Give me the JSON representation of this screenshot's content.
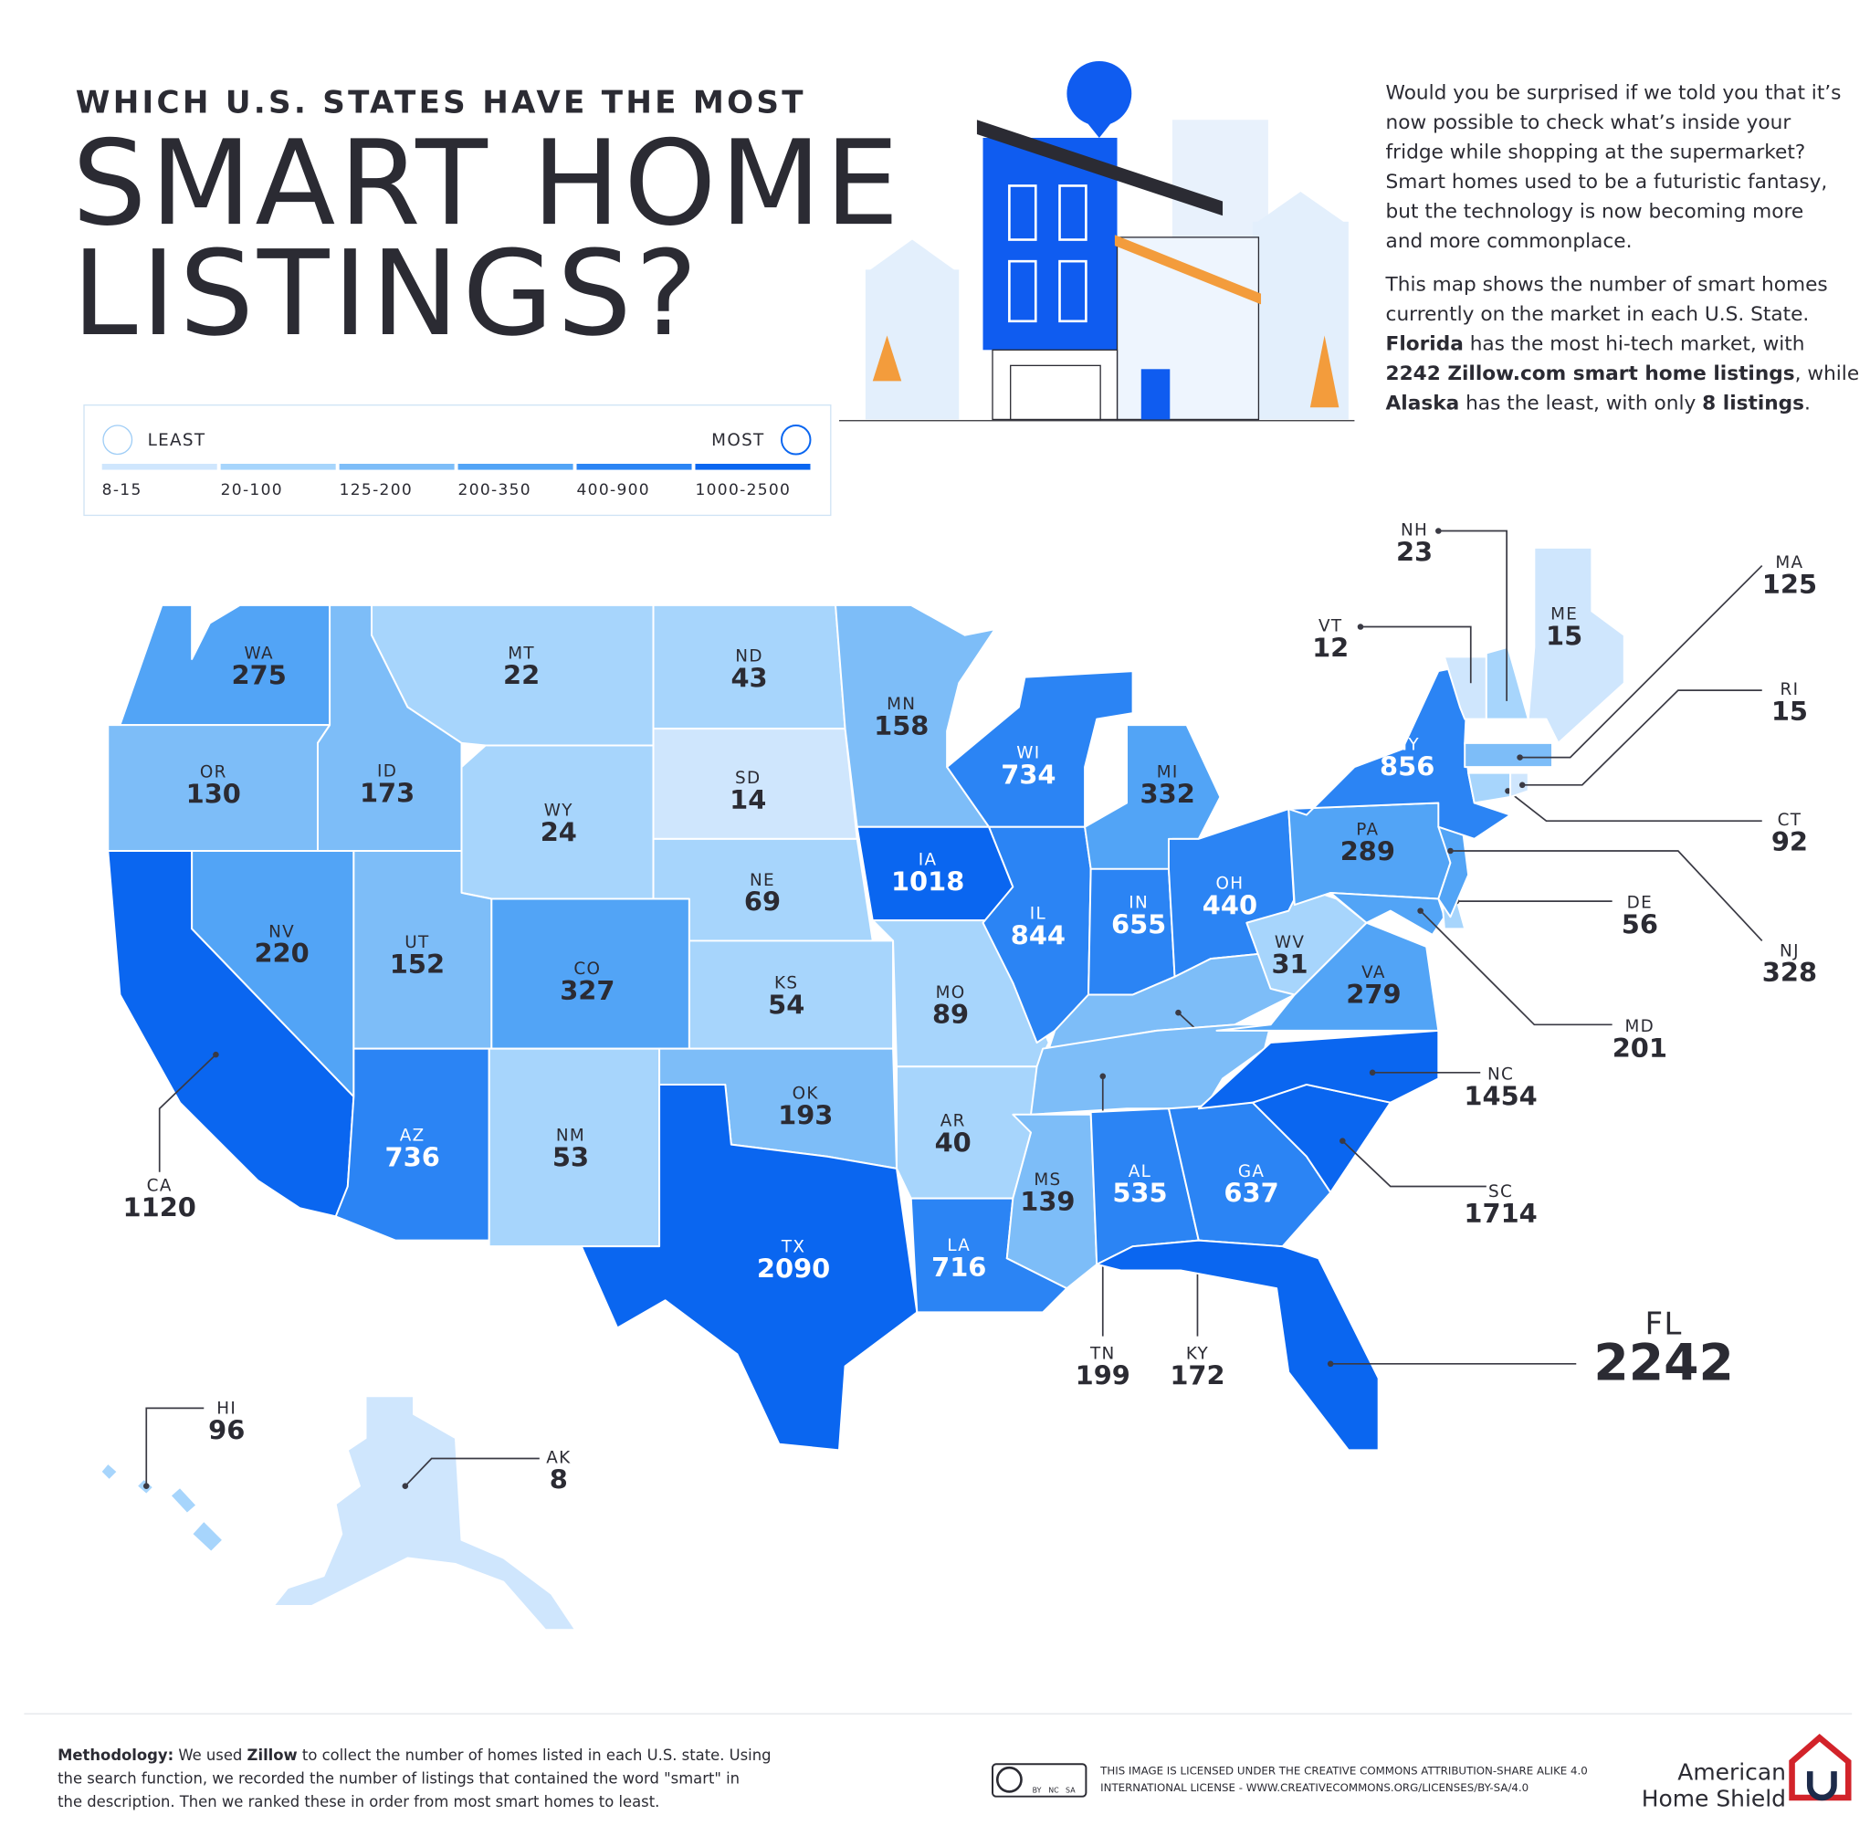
{
  "header": {
    "kicker": "WHICH U.S. STATES HAVE THE MOST",
    "title_line1": "SMART HOME",
    "title_line2": "LISTINGS?"
  },
  "intro": {
    "paragraph1": [
      [
        {
          "text": "Would you be surprised if we told you that it’s"
        }
      ],
      [
        {
          "text": "now possible to check what’s inside your"
        }
      ],
      [
        {
          "text": "fridge while shopping at the supermarket?"
        }
      ],
      [
        {
          "text": "Smart homes used to be a futuristic fantasy,"
        }
      ],
      [
        {
          "text": "but the technology is now becoming more"
        }
      ],
      [
        {
          "text": "and more commonplace."
        }
      ]
    ],
    "paragraph2": [
      [
        {
          "text": "This map shows the number of smart homes"
        }
      ],
      [
        {
          "text": "currently on the market in each U.S. State."
        }
      ],
      [
        {
          "text": "Florida",
          "bold": true
        },
        {
          "text": " has the most hi-tech market, with"
        }
      ],
      [
        {
          "text": "2242 Zillow.com smart home listings",
          "bold": true
        },
        {
          "text": ", while"
        }
      ],
      [
        {
          "text": "Alaska",
          "bold": true
        },
        {
          "text": " has the least, with only "
        },
        {
          "text": "8 listings",
          "bold": true
        },
        {
          "text": "."
        }
      ]
    ]
  },
  "legend": {
    "least": "LEAST",
    "most": "MOST",
    "bins": [
      {
        "label": "8-15",
        "color": "#cfe6fd"
      },
      {
        "label": "20-100",
        "color": "#a7d5fc"
      },
      {
        "label": "125-200",
        "color": "#7dbdf8"
      },
      {
        "label": "200-350",
        "color": "#52a4f6"
      },
      {
        "label": "400-900",
        "color": "#2b84f4"
      },
      {
        "label": "1000-2500",
        "color": "#0a66f0"
      }
    ]
  },
  "map": {
    "states": [
      {
        "abbr": "WA",
        "value": 275,
        "color": "#52a4f6"
      },
      {
        "abbr": "OR",
        "value": 130,
        "color": "#7dbdf8"
      },
      {
        "abbr": "CA",
        "value": 1120,
        "color": "#0a66f0"
      },
      {
        "abbr": "NV",
        "value": 220,
        "color": "#52a4f6"
      },
      {
        "abbr": "ID",
        "value": 173,
        "color": "#7dbdf8"
      },
      {
        "abbr": "MT",
        "value": 22,
        "color": "#a7d5fc"
      },
      {
        "abbr": "WY",
        "value": 24,
        "color": "#a7d5fc"
      },
      {
        "abbr": "UT",
        "value": 152,
        "color": "#7dbdf8"
      },
      {
        "abbr": "CO",
        "value": 327,
        "color": "#52a4f6"
      },
      {
        "abbr": "AZ",
        "value": 736,
        "color": "#2b84f4"
      },
      {
        "abbr": "NM",
        "value": 53,
        "color": "#a7d5fc"
      },
      {
        "abbr": "ND",
        "value": 43,
        "color": "#a7d5fc"
      },
      {
        "abbr": "SD",
        "value": 14,
        "color": "#cfe6fd"
      },
      {
        "abbr": "NE",
        "value": 69,
        "color": "#a7d5fc"
      },
      {
        "abbr": "KS",
        "value": 54,
        "color": "#a7d5fc"
      },
      {
        "abbr": "OK",
        "value": 193,
        "color": "#7dbdf8"
      },
      {
        "abbr": "TX",
        "value": 2090,
        "color": "#0a66f0"
      },
      {
        "abbr": "MN",
        "value": 158,
        "color": "#7dbdf8"
      },
      {
        "abbr": "IA",
        "value": 1018,
        "color": "#0a66f0"
      },
      {
        "abbr": "MO",
        "value": 89,
        "color": "#a7d5fc"
      },
      {
        "abbr": "AR",
        "value": 40,
        "color": "#a7d5fc"
      },
      {
        "abbr": "LA",
        "value": 716,
        "color": "#2b84f4"
      },
      {
        "abbr": "WI",
        "value": 734,
        "color": "#2b84f4"
      },
      {
        "abbr": "IL",
        "value": 844,
        "color": "#2b84f4"
      },
      {
        "abbr": "IN",
        "value": 655,
        "color": "#2b84f4"
      },
      {
        "abbr": "MI",
        "value": 332,
        "color": "#52a4f6"
      },
      {
        "abbr": "OH",
        "value": 440,
        "color": "#2b84f4"
      },
      {
        "abbr": "KY",
        "value": 172,
        "color": "#7dbdf8"
      },
      {
        "abbr": "TN",
        "value": 199,
        "color": "#7dbdf8"
      },
      {
        "abbr": "MS",
        "value": 139,
        "color": "#7dbdf8"
      },
      {
        "abbr": "AL",
        "value": 535,
        "color": "#2b84f4"
      },
      {
        "abbr": "GA",
        "value": 637,
        "color": "#2b84f4"
      },
      {
        "abbr": "FL",
        "value": 2242,
        "color": "#0a66f0"
      },
      {
        "abbr": "SC",
        "value": 1714,
        "color": "#0a66f0"
      },
      {
        "abbr": "NC",
        "value": 1454,
        "color": "#0a66f0"
      },
      {
        "abbr": "VA",
        "value": 279,
        "color": "#52a4f6"
      },
      {
        "abbr": "WV",
        "value": 31,
        "color": "#a7d5fc"
      },
      {
        "abbr": "PA",
        "value": 289,
        "color": "#52a4f6"
      },
      {
        "abbr": "MD",
        "value": 201,
        "color": "#52a4f6"
      },
      {
        "abbr": "DE",
        "value": 56,
        "color": "#a7d5fc"
      },
      {
        "abbr": "NJ",
        "value": 328,
        "color": "#52a4f6"
      },
      {
        "abbr": "NY",
        "value": 856,
        "color": "#2b84f4"
      },
      {
        "abbr": "CT",
        "value": 92,
        "color": "#a7d5fc"
      },
      {
        "abbr": "RI",
        "value": 15,
        "color": "#cfe6fd"
      },
      {
        "abbr": "MA",
        "value": 125,
        "color": "#7dbdf8"
      },
      {
        "abbr": "VT",
        "value": 12,
        "color": "#cfe6fd"
      },
      {
        "abbr": "NH",
        "value": 23,
        "color": "#a7d5fc"
      },
      {
        "abbr": "ME",
        "value": 15,
        "color": "#cfe6fd"
      },
      {
        "abbr": "HI",
        "value": 96,
        "color": "#a7d5fc"
      },
      {
        "abbr": "AK",
        "value": 8,
        "color": "#cfe6fd"
      }
    ]
  },
  "methodology": [
    [
      {
        "text": "Methodology:",
        "bold": true
      },
      {
        "text": " We used "
      },
      {
        "text": "Zillow",
        "bold": true
      },
      {
        "text": " to collect the number of homes listed in each U.S. state. Using"
      }
    ],
    [
      {
        "text": "the search function, we recorded the number of listings that contained the word \"smart\" in"
      }
    ],
    [
      {
        "text": "the description. Then we ranked these in order from most smart homes to least."
      }
    ]
  ],
  "license": {
    "badge": [
      "BY",
      "NC",
      "SA"
    ],
    "lines": [
      "THIS IMAGE IS LICENSED UNDER THE CREATIVE COMMONS ATTRIBUTION-SHARE ALIKE 4.0",
      "INTERNATIONAL LICENSE - WWW.CREATIVECOMMONS.ORG/LICENSES/BY-SA/4.0"
    ]
  },
  "brand": {
    "line1": "American",
    "line2": "Home Shield"
  }
}
